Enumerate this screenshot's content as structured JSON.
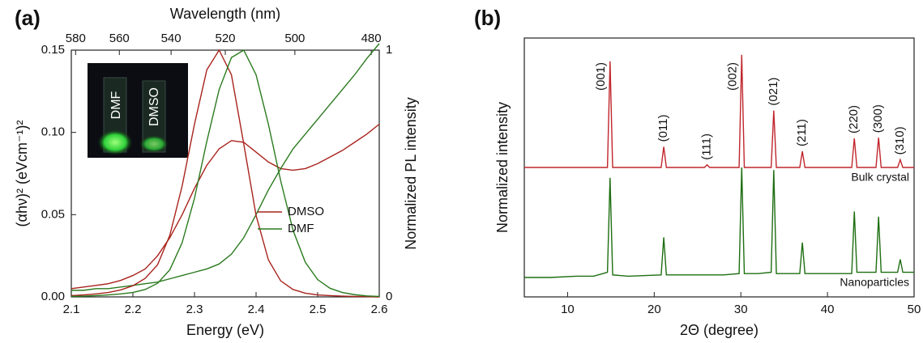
{
  "chart_data": [
    {
      "type": "line",
      "panel_label": "(a)",
      "xlabel": "Energy (eV)",
      "ylabel": "(αhν)² (eVcm⁻¹)²",
      "y2label": "Normalized PL intensity",
      "x2label": "Wavelength (nm)",
      "xlim": [
        2.1,
        2.6
      ],
      "xticks": [
        2.1,
        2.2,
        2.3,
        2.4,
        2.5,
        2.6
      ],
      "ylim": [
        0,
        0.15
      ],
      "yticks": [
        {
          "value": 0,
          "label": "0.00"
        },
        {
          "value": 0.05,
          "label": "0.05"
        },
        {
          "value": 0.1,
          "label": "0.10"
        },
        {
          "value": 0.15,
          "label": "0.15"
        }
      ],
      "y2lim": [
        0,
        1
      ],
      "y2ticks": [
        0,
        1
      ],
      "x2ticks": [
        {
          "value": 2.107,
          "label": "580"
        },
        {
          "value": 2.178,
          "label": "560"
        },
        {
          "value": 2.262,
          "label": "540"
        },
        {
          "value": 2.35,
          "label": "520"
        },
        {
          "value": 2.463,
          "label": "500"
        },
        {
          "value": 2.587,
          "label": "480"
        }
      ],
      "inset_labels": [
        "DMF",
        "DMSO"
      ],
      "legend": "center-right",
      "x": [
        2.1,
        2.12,
        2.14,
        2.16,
        2.18,
        2.2,
        2.22,
        2.24,
        2.26,
        2.28,
        2.3,
        2.32,
        2.34,
        2.36,
        2.38,
        2.4,
        2.42,
        2.44,
        2.46,
        2.48,
        2.5,
        2.52,
        2.54,
        2.56,
        2.58,
        2.6
      ],
      "series": [
        {
          "name": "DMSO",
          "color": "#a8231c",
          "values": [
            0.005,
            0.006,
            0.007,
            0.008,
            0.01,
            0.013,
            0.017,
            0.025,
            0.036,
            0.05,
            0.066,
            0.08,
            0.09,
            0.095,
            0.094,
            0.088,
            0.082,
            0.078,
            0.077,
            0.078,
            0.081,
            0.085,
            0.089,
            0.094,
            0.099,
            0.105
          ]
        },
        {
          "name": "DMF",
          "color": "#2a7a1e",
          "values": [
            0.004,
            0.004,
            0.005,
            0.005,
            0.006,
            0.007,
            0.008,
            0.009,
            0.011,
            0.013,
            0.015,
            0.017,
            0.02,
            0.026,
            0.036,
            0.05,
            0.065,
            0.078,
            0.09,
            0.099,
            0.108,
            0.117,
            0.126,
            0.135,
            0.145,
            0.154
          ]
        },
        {
          "color": "#a8231c",
          "axis": "y2",
          "values": [
            0.005,
            0.008,
            0.012,
            0.018,
            0.028,
            0.045,
            0.075,
            0.13,
            0.25,
            0.45,
            0.7,
            0.92,
            1.0,
            0.9,
            0.62,
            0.33,
            0.15,
            0.065,
            0.03,
            0.015,
            0.008,
            0.005,
            0.003,
            0.002,
            0.001,
            0
          ]
        },
        {
          "color": "#2a7a1e",
          "axis": "y2",
          "values": [
            0.002,
            0.003,
            0.005,
            0.008,
            0.012,
            0.018,
            0.03,
            0.055,
            0.11,
            0.22,
            0.4,
            0.63,
            0.84,
            0.97,
            1.0,
            0.9,
            0.7,
            0.47,
            0.27,
            0.14,
            0.07,
            0.035,
            0.018,
            0.009,
            0.004,
            0.002
          ]
        }
      ]
    },
    {
      "type": "line",
      "panel_label": "(b)",
      "xlabel": "2Θ (degree)",
      "ylabel": "Normalized intensity",
      "xlim": [
        5,
        50
      ],
      "xticks": [
        10,
        20,
        30,
        40,
        50
      ],
      "ylim": [
        0,
        2
      ],
      "series_labels": true,
      "x": [
        5,
        8,
        11,
        13,
        14.6,
        14.9,
        15.2,
        17,
        20.8,
        21.1,
        21.4,
        24,
        25.8,
        26.1,
        26.4,
        28,
        29.8,
        30.1,
        30.4,
        32,
        33.5,
        33.8,
        34.1,
        35.5,
        36.8,
        37.1,
        37.4,
        40,
        42.8,
        43.1,
        43.4,
        44.5,
        45.6,
        45.9,
        46.2,
        47.5,
        48.1,
        48.4,
        48.7,
        50
      ],
      "series": [
        {
          "name": "Bulk crystal",
          "color": "#c0262d",
          "values": [
            1.0,
            1.0,
            1.0,
            1.0,
            1.0,
            1.82,
            1.0,
            1.0,
            1.0,
            1.16,
            1.0,
            1.0,
            1.0,
            1.02,
            1.0,
            1.0,
            1.0,
            1.87,
            1.0,
            1.0,
            1.0,
            1.44,
            1.0,
            1.0,
            1.0,
            1.125,
            1.0,
            1.0,
            1.0,
            1.225,
            1.0,
            1.0,
            1.0,
            1.23,
            1.0,
            1.0,
            1.0,
            1.06,
            1.0,
            1.0
          ]
        },
        {
          "name": "Nanoparticles",
          "color": "#1e6e12",
          "values": [
            0.15,
            0.15,
            0.16,
            0.16,
            0.19,
            0.92,
            0.17,
            0.16,
            0.17,
            0.46,
            0.17,
            0.17,
            0.17,
            0.17,
            0.17,
            0.17,
            0.18,
            1.0,
            0.18,
            0.18,
            0.19,
            0.98,
            0.18,
            0.18,
            0.18,
            0.42,
            0.18,
            0.18,
            0.18,
            0.66,
            0.19,
            0.19,
            0.19,
            0.62,
            0.19,
            0.19,
            0.19,
            0.29,
            0.19,
            0.19
          ]
        }
      ],
      "annotations": [
        {
          "text": "(001)",
          "x": 14.9
        },
        {
          "text": "(011)",
          "x": 21.1
        },
        {
          "text": "(111)",
          "x": 26.1
        },
        {
          "text": "(002)",
          "x": 30.1
        },
        {
          "text": "(021)",
          "x": 33.8
        },
        {
          "text": "(211)",
          "x": 37.1
        },
        {
          "text": "(220)",
          "x": 43.1
        },
        {
          "text": "(300)",
          "x": 45.9
        },
        {
          "text": "(310)",
          "x": 48.4
        }
      ]
    }
  ]
}
